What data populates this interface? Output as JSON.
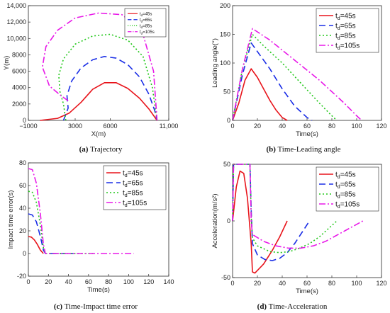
{
  "figure": {
    "colors": {
      "axis": "#262626",
      "frame_bg": "#ffffff"
    }
  },
  "chart_data": [
    {
      "id": "a",
      "type": "line",
      "caption_tag": "(a)",
      "caption_text": " Trajectory",
      "xlabel": "X(m)",
      "ylabel": "Y(m)",
      "xlim": [
        -1000,
        11000
      ],
      "ylim": [
        0,
        14000
      ],
      "xticks": [
        -1000,
        3000,
        6000,
        11000
      ],
      "xtick_labels": [
        "−1000",
        "3000",
        "6000",
        "11,000"
      ],
      "yticks": [
        0,
        2000,
        4000,
        6000,
        8000,
        10000,
        12000,
        14000
      ],
      "ytick_labels": [
        "0",
        "2000",
        "4000",
        "6000",
        "8000",
        "10,000",
        "12,000",
        "14,000"
      ],
      "grid": false,
      "legend": "top-right",
      "legend_size": "small",
      "series": [
        {
          "legend_main": "t",
          "legend_sub": "d",
          "legend_rest": "=45s",
          "color": "#e8141b",
          "dash": "solid",
          "x": [
            0,
            1500,
            2500,
            3500,
            4500,
            5500,
            6500,
            7500,
            8500,
            9300,
            9800,
            10000
          ],
          "y": [
            0,
            250,
            900,
            2200,
            3800,
            4600,
            4600,
            3900,
            2700,
            1400,
            400,
            0
          ]
        },
        {
          "legend_main": "t",
          "legend_sub": "d",
          "legend_rest": "=65s",
          "color": "#1a2ee6",
          "dash": "dash",
          "x": [
            2000,
            2400,
            2300,
            2700,
            3500,
            4500,
            5500,
            6500,
            7500,
            8500,
            9300,
            9800,
            10000
          ],
          "y": [
            0,
            1500,
            3000,
            4800,
            6400,
            7400,
            7800,
            7600,
            6800,
            5300,
            3200,
            1200,
            0
          ]
        },
        {
          "legend_main": "t",
          "legend_sub": "d",
          "legend_rest": "=85s",
          "color": "#22c71a",
          "dash": "dot",
          "x": [
            2200,
            2000,
            1700,
            1600,
            2000,
            3000,
            4500,
            6000,
            7500,
            8800,
            9600,
            10000
          ],
          "y": [
            0,
            2000,
            3500,
            5500,
            7500,
            9300,
            10300,
            10500,
            9800,
            7800,
            4000,
            0
          ]
        },
        {
          "legend_main": "t",
          "legend_sub": "d",
          "legend_rest": "=105s",
          "color": "#e819e8",
          "dash": "dashdot",
          "x": [
            2400,
            1800,
            800,
            200,
            500,
            1500,
            3000,
            5000,
            7000,
            8700,
            9700,
            10000
          ],
          "y": [
            2400,
            3000,
            4200,
            6500,
            9000,
            11000,
            12500,
            13100,
            12900,
            11000,
            6000,
            0
          ]
        }
      ]
    },
    {
      "id": "b",
      "type": "line",
      "caption_tag": "(b)",
      "caption_text": " Time-Leading angle",
      "xlabel": "Time(s)",
      "ylabel": "Leading angle(°)",
      "xlim": [
        0,
        120
      ],
      "ylim": [
        0,
        200
      ],
      "xticks": [
        0,
        20,
        40,
        60,
        80,
        100,
        120
      ],
      "yticks": [
        0,
        50,
        100,
        150,
        200
      ],
      "grid": false,
      "legend": "top-right",
      "legend_size": "large",
      "series": [
        {
          "legend_main": "t",
          "legend_sub": "d",
          "legend_rest": "=45s",
          "color": "#e8141b",
          "dash": "solid",
          "x": [
            0,
            5,
            10,
            15,
            20,
            25,
            30,
            35,
            40,
            44
          ],
          "y": [
            0,
            30,
            70,
            90,
            75,
            55,
            35,
            18,
            5,
            0
          ]
        },
        {
          "legend_main": "t",
          "legend_sub": "d",
          "legend_rest": "=65s",
          "color": "#1a2ee6",
          "dash": "dash",
          "x": [
            0,
            8,
            15,
            20,
            30,
            40,
            50,
            60,
            64
          ],
          "y": [
            0,
            80,
            135,
            120,
            90,
            55,
            25,
            5,
            0
          ]
        },
        {
          "legend_main": "t",
          "legend_sub": "d",
          "legend_rest": "=85s",
          "color": "#22c71a",
          "dash": "dot",
          "x": [
            0,
            8,
            16,
            25,
            40,
            55,
            70,
            80,
            84
          ],
          "y": [
            0,
            90,
            150,
            130,
            100,
            65,
            30,
            8,
            0
          ]
        },
        {
          "legend_main": "t",
          "legend_sub": "d",
          "legend_rest": "=105s",
          "color": "#e819e8",
          "dash": "dashdot",
          "x": [
            0,
            8,
            16,
            30,
            50,
            70,
            90,
            100,
            104
          ],
          "y": [
            0,
            90,
            160,
            140,
            105,
            70,
            30,
            8,
            0
          ]
        }
      ]
    },
    {
      "id": "c",
      "type": "line",
      "caption_tag": "(c)",
      "caption_text": " Time-Impact time error",
      "xlabel": "Time(s)",
      "ylabel": "Impact time error(s)",
      "xlim": [
        0,
        140
      ],
      "ylim": [
        -20,
        80
      ],
      "xticks": [
        0,
        20,
        40,
        60,
        80,
        100,
        120,
        140
      ],
      "yticks": [
        -20,
        0,
        20,
        40,
        60,
        80
      ],
      "grid": false,
      "legend": "top-right",
      "legend_size": "large",
      "series": [
        {
          "legend_main": "t",
          "legend_sub": "d",
          "legend_rest": "=45s",
          "color": "#e8141b",
          "dash": "solid",
          "x": [
            0,
            3,
            6,
            9,
            12,
            15
          ],
          "y": [
            15,
            14.5,
            12,
            8,
            3,
            0
          ]
        },
        {
          "legend_main": "t",
          "legend_sub": "d",
          "legend_rest": "=65s",
          "color": "#1a2ee6",
          "dash": "dash",
          "x": [
            0,
            4,
            8,
            12,
            15,
            17,
            25,
            45
          ],
          "y": [
            35,
            34,
            28,
            15,
            3,
            0,
            0,
            0
          ]
        },
        {
          "legend_main": "t",
          "legend_sub": "d",
          "legend_rest": "=85s",
          "color": "#22c71a",
          "dash": "dot",
          "x": [
            0,
            4,
            8,
            12,
            15,
            17,
            30,
            65
          ],
          "y": [
            55,
            54,
            45,
            25,
            5,
            0,
            0,
            0
          ]
        },
        {
          "legend_main": "t",
          "legend_sub": "d",
          "legend_rest": "=105s",
          "color": "#e819e8",
          "dash": "dashdot",
          "x": [
            0,
            4,
            8,
            12,
            15,
            17,
            40,
            80,
            105
          ],
          "y": [
            75,
            74,
            62,
            35,
            8,
            0,
            0,
            0,
            0
          ]
        }
      ]
    },
    {
      "id": "d",
      "type": "line",
      "caption_tag": "(d)",
      "caption_text": " Time-Acceleration",
      "xlabel": "Time(s)",
      "ylabel": "Acceleration(m/s²)",
      "xlim": [
        0,
        120
      ],
      "ylim": [
        -50,
        50
      ],
      "xticks": [
        0,
        20,
        40,
        60,
        80,
        100,
        120
      ],
      "yticks": [
        -50,
        0,
        50
      ],
      "grid": false,
      "legend": "top-right",
      "legend_size": "large",
      "series": [
        {
          "legend_main": "t",
          "legend_sub": "d",
          "legend_rest": "=45s",
          "color": "#e8141b",
          "dash": "solid",
          "x": [
            0,
            3,
            6,
            9,
            12,
            15,
            16,
            18,
            25,
            32,
            38,
            44
          ],
          "y": [
            0,
            30,
            44,
            42,
            20,
            -20,
            -45,
            -46,
            -38,
            -26,
            -14,
            0
          ]
        },
        {
          "legend_main": "t",
          "legend_sub": "d",
          "legend_rest": "=65s",
          "color": "#1a2ee6",
          "dash": "dash",
          "x": [
            0,
            0.8,
            14,
            15,
            16,
            20,
            26,
            32,
            38,
            44,
            50,
            56,
            62
          ],
          "y": [
            0,
            50,
            50,
            10,
            -20,
            -30,
            -34,
            -35,
            -33,
            -28,
            -20,
            -10,
            0
          ]
        },
        {
          "legend_main": "t",
          "legend_sub": "d",
          "legend_rest": "=85s",
          "color": "#22c71a",
          "dash": "dot",
          "x": [
            0,
            0.8,
            14,
            15,
            16,
            20,
            30,
            38,
            46,
            54,
            62,
            70,
            78,
            84
          ],
          "y": [
            0,
            50,
            50,
            5,
            -15,
            -22,
            -27,
            -28,
            -27,
            -24,
            -20,
            -14,
            -6,
            0
          ]
        },
        {
          "legend_main": "t",
          "legend_sub": "d",
          "legend_rest": "=105s",
          "color": "#e819e8",
          "dash": "dashdot",
          "x": [
            0,
            0.8,
            14,
            15,
            16,
            25,
            35,
            45,
            55,
            65,
            75,
            85,
            95,
            105
          ],
          "y": [
            0,
            50,
            50,
            0,
            -12,
            -18,
            -22,
            -24,
            -24,
            -22,
            -18,
            -12,
            -6,
            0
          ]
        }
      ]
    }
  ]
}
